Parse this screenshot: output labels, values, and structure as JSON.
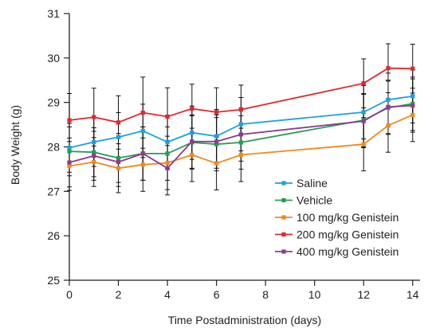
{
  "chart_data": {
    "type": "line",
    "xlabel": "Time Postadministration (days)",
    "ylabel": "Body Weight (g)",
    "xlim": [
      0,
      14.3
    ],
    "ylim": [
      25,
      31
    ],
    "xticks": [
      0,
      2,
      4,
      6,
      8,
      10,
      12,
      14
    ],
    "yticks": [
      25,
      26,
      27,
      28,
      29,
      30,
      31
    ],
    "legend_position": "bottom-right",
    "grid": false,
    "error_bars": "black vertical with caps",
    "x": [
      0,
      1,
      2,
      3,
      4,
      5,
      6,
      7,
      12,
      13,
      14
    ],
    "series": [
      {
        "name": "Saline",
        "color": "#1ba1e2",
        "values": [
          27.98,
          28.11,
          28.22,
          28.36,
          28.11,
          28.32,
          28.24,
          28.51,
          28.78,
          29.06,
          29.14
        ],
        "errors": [
          0.55,
          0.55,
          0.55,
          0.6,
          0.6,
          0.6,
          0.6,
          0.6,
          0.6,
          0.6,
          0.6
        ]
      },
      {
        "name": "Vehicle",
        "color": "#20a050",
        "values": [
          27.9,
          27.88,
          27.75,
          27.85,
          27.85,
          28.1,
          28.06,
          28.1,
          28.6,
          28.88,
          28.97
        ],
        "errors": [
          0.55,
          0.55,
          0.55,
          0.6,
          0.6,
          0.6,
          0.6,
          0.6,
          0.6,
          0.6,
          0.6
        ]
      },
      {
        "name": "100 mg/kg Genistein",
        "color": "#f08a1c",
        "values": [
          27.57,
          27.66,
          27.52,
          27.6,
          27.64,
          27.82,
          27.63,
          27.82,
          28.06,
          28.48,
          28.72
        ],
        "errors": [
          0.55,
          0.55,
          0.55,
          0.6,
          0.6,
          0.6,
          0.6,
          0.6,
          0.6,
          0.6,
          0.6
        ]
      },
      {
        "name": "200 mg/kg Genistein",
        "color": "#e5262b",
        "values": [
          28.6,
          28.67,
          28.55,
          28.77,
          28.68,
          28.86,
          28.78,
          28.84,
          29.43,
          29.77,
          29.76
        ],
        "errors": [
          0.6,
          0.65,
          0.6,
          0.8,
          0.65,
          0.55,
          0.55,
          0.55,
          0.55,
          0.55,
          0.55
        ]
      },
      {
        "name": "400 mg/kg Genistein",
        "color": "#8e3b8f",
        "values": [
          27.65,
          27.8,
          27.66,
          27.85,
          27.52,
          28.12,
          28.12,
          28.28,
          28.58,
          28.9,
          28.93
        ],
        "errors": [
          0.55,
          0.55,
          0.55,
          0.6,
          0.6,
          0.6,
          0.6,
          0.6,
          0.6,
          0.6,
          0.6
        ]
      }
    ]
  }
}
